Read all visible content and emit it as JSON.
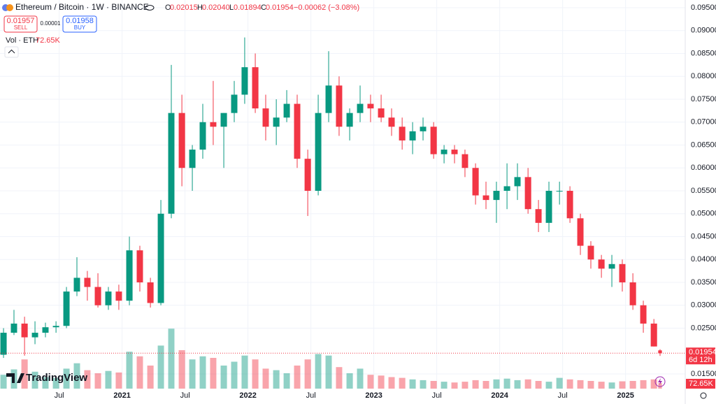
{
  "chart_data": {
    "type": "candlestick",
    "title": "Ethereum / Bitcoin · 1W · BINANCE",
    "ohlc_keys": [
      "O",
      "H",
      "L",
      "C"
    ],
    "ohlc_labels": [
      "0.02015",
      "0.02040",
      "0.01894",
      "0.01954"
    ],
    "change_label": "−0.00062 (−3.08%)",
    "sell": {
      "price": "0.01957",
      "label": "SELL"
    },
    "spread": "0.00001",
    "buy": {
      "price": "0.01958",
      "label": "BUY"
    },
    "volume_title": "Vol · ETH",
    "volume_label": "72.65K",
    "countdown": "6d 12h",
    "brand": "TradingView",
    "x": [
      2020.058,
      2020.141,
      2020.225,
      2020.308,
      2020.391,
      2020.475,
      2020.558,
      2020.641,
      2020.724,
      2020.808,
      2020.891,
      2020.974,
      2021.058,
      2021.141,
      2021.225,
      2021.308,
      2021.391,
      2021.475,
      2021.558,
      2021.641,
      2021.724,
      2021.808,
      2021.891,
      2021.974,
      2022.058,
      2022.141,
      2022.225,
      2022.308,
      2022.391,
      2022.475,
      2022.558,
      2022.641,
      2022.724,
      2022.808,
      2022.891,
      2022.974,
      2023.058,
      2023.141,
      2023.225,
      2023.308,
      2023.391,
      2023.475,
      2023.558,
      2023.641,
      2023.724,
      2023.808,
      2023.891,
      2023.974,
      2024.058,
      2024.141,
      2024.225,
      2024.308,
      2024.391,
      2024.475,
      2024.558,
      2024.641,
      2024.724,
      2024.808,
      2024.891,
      2024.974,
      2025.058,
      2025.141,
      2025.225,
      2025.274
    ],
    "open": [
      0.0192,
      0.024,
      0.026,
      0.023,
      0.024,
      0.0252,
      0.0255,
      0.033,
      0.036,
      0.034,
      0.03,
      0.033,
      0.031,
      0.042,
      0.035,
      0.0305,
      0.05,
      0.072,
      0.06,
      0.064,
      0.07,
      0.069,
      0.072,
      0.076,
      0.082,
      0.073,
      0.069,
      0.071,
      0.074,
      0.062,
      0.055,
      0.072,
      0.078,
      0.069,
      0.072,
      0.074,
      0.073,
      0.071,
      0.069,
      0.066,
      0.068,
      0.069,
      0.063,
      0.064,
      0.063,
      0.06,
      0.054,
      0.053,
      0.055,
      0.056,
      0.058,
      0.051,
      0.048,
      0.055,
      0.055,
      0.049,
      0.043,
      0.04,
      0.038,
      0.039,
      0.035,
      0.03,
      0.026,
      0.02015
    ],
    "high": [
      0.025,
      0.029,
      0.0275,
      0.0265,
      0.0262,
      0.0265,
      0.034,
      0.0405,
      0.0375,
      0.037,
      0.034,
      0.0345,
      0.045,
      0.043,
      0.036,
      0.053,
      0.0825,
      0.076,
      0.065,
      0.074,
      0.079,
      0.072,
      0.079,
      0.0885,
      0.085,
      0.076,
      0.075,
      0.077,
      0.076,
      0.064,
      0.076,
      0.0855,
      0.08,
      0.073,
      0.078,
      0.076,
      0.076,
      0.073,
      0.071,
      0.07,
      0.071,
      0.07,
      0.065,
      0.065,
      0.064,
      0.061,
      0.057,
      0.057,
      0.061,
      0.061,
      0.06,
      0.053,
      0.057,
      0.057,
      0.056,
      0.05,
      0.044,
      0.041,
      0.041,
      0.04,
      0.037,
      0.031,
      0.027,
      0.0204
    ],
    "low": [
      0.0185,
      0.0235,
      0.019,
      0.0215,
      0.023,
      0.024,
      0.025,
      0.032,
      0.031,
      0.0295,
      0.029,
      0.029,
      0.03,
      0.033,
      0.0295,
      0.03,
      0.049,
      0.056,
      0.055,
      0.062,
      0.065,
      0.06,
      0.07,
      0.074,
      0.072,
      0.066,
      0.065,
      0.07,
      0.06,
      0.0495,
      0.054,
      0.07,
      0.067,
      0.066,
      0.07,
      0.07,
      0.07,
      0.067,
      0.064,
      0.063,
      0.066,
      0.062,
      0.061,
      0.061,
      0.058,
      0.052,
      0.051,
      0.048,
      0.051,
      0.053,
      0.05,
      0.046,
      0.046,
      0.052,
      0.048,
      0.041,
      0.038,
      0.036,
      0.034,
      0.033,
      0.029,
      0.024,
      0.021,
      0.01894
    ],
    "close": [
      0.024,
      0.026,
      0.023,
      0.024,
      0.0252,
      0.0255,
      0.033,
      0.036,
      0.034,
      0.03,
      0.033,
      0.031,
      0.042,
      0.035,
      0.0305,
      0.05,
      0.072,
      0.06,
      0.064,
      0.07,
      0.069,
      0.072,
      0.076,
      0.082,
      0.073,
      0.069,
      0.071,
      0.074,
      0.062,
      0.055,
      0.072,
      0.078,
      0.069,
      0.072,
      0.074,
      0.073,
      0.071,
      0.069,
      0.066,
      0.068,
      0.069,
      0.063,
      0.064,
      0.063,
      0.06,
      0.054,
      0.053,
      0.055,
      0.056,
      0.058,
      0.051,
      0.048,
      0.055,
      0.055,
      0.049,
      0.043,
      0.04,
      0.038,
      0.039,
      0.035,
      0.03,
      0.026,
      0.021,
      0.01954
    ],
    "volume": [
      180,
      250,
      380,
      220,
      150,
      140,
      260,
      330,
      240,
      200,
      230,
      210,
      480,
      420,
      300,
      560,
      780,
      500,
      380,
      420,
      400,
      300,
      350,
      430,
      380,
      260,
      240,
      200,
      300,
      380,
      450,
      430,
      280,
      200,
      260,
      180,
      170,
      150,
      140,
      120,
      110,
      100,
      90,
      80,
      90,
      110,
      100,
      120,
      130,
      110,
      120,
      100,
      90,
      140,
      120,
      110,
      100,
      90,
      80,
      95,
      100,
      110,
      120,
      72.65
    ],
    "vlim": [
      0,
      1000
    ],
    "up_color": "#089981",
    "down_color": "#f23645",
    "xlim": [
      2020.03,
      2025.474
    ],
    "xticks": [
      {
        "value": 2020.5,
        "label": "Jul"
      },
      2021,
      {
        "value": 2021.5,
        "label": "Jul"
      },
      2022,
      {
        "value": 2022.5,
        "label": "Jul"
      },
      2023,
      {
        "value": 2023.5,
        "label": "Jul"
      },
      2024,
      {
        "value": 2024.5,
        "label": "Jul"
      },
      2025
    ],
    "ylim": [
      0.015,
      0.095
    ],
    "yticks": [
      {
        "value": 0.095,
        "label": "0.09500"
      },
      {
        "value": 0.09,
        "label": "0.09000"
      },
      {
        "value": 0.085,
        "label": "0.08500"
      },
      {
        "value": 0.08,
        "label": "0.08000"
      },
      {
        "value": 0.075,
        "label": "0.07500"
      },
      {
        "value": 0.07,
        "label": "0.07000"
      },
      {
        "value": 0.065,
        "label": "0.06500"
      },
      {
        "value": 0.06,
        "label": "0.06000"
      },
      {
        "value": 0.055,
        "label": "0.05500"
      },
      {
        "value": 0.05,
        "label": "0.05000"
      },
      {
        "value": 0.045,
        "label": "0.04500"
      },
      {
        "value": 0.04,
        "label": "0.04000"
      },
      {
        "value": 0.035,
        "label": "0.03500"
      },
      {
        "value": 0.03,
        "label": "0.03000"
      },
      {
        "value": 0.025,
        "label": "0.02500"
      },
      {
        "value": 0.015,
        "label": "0.01500"
      }
    ],
    "grid": true
  }
}
